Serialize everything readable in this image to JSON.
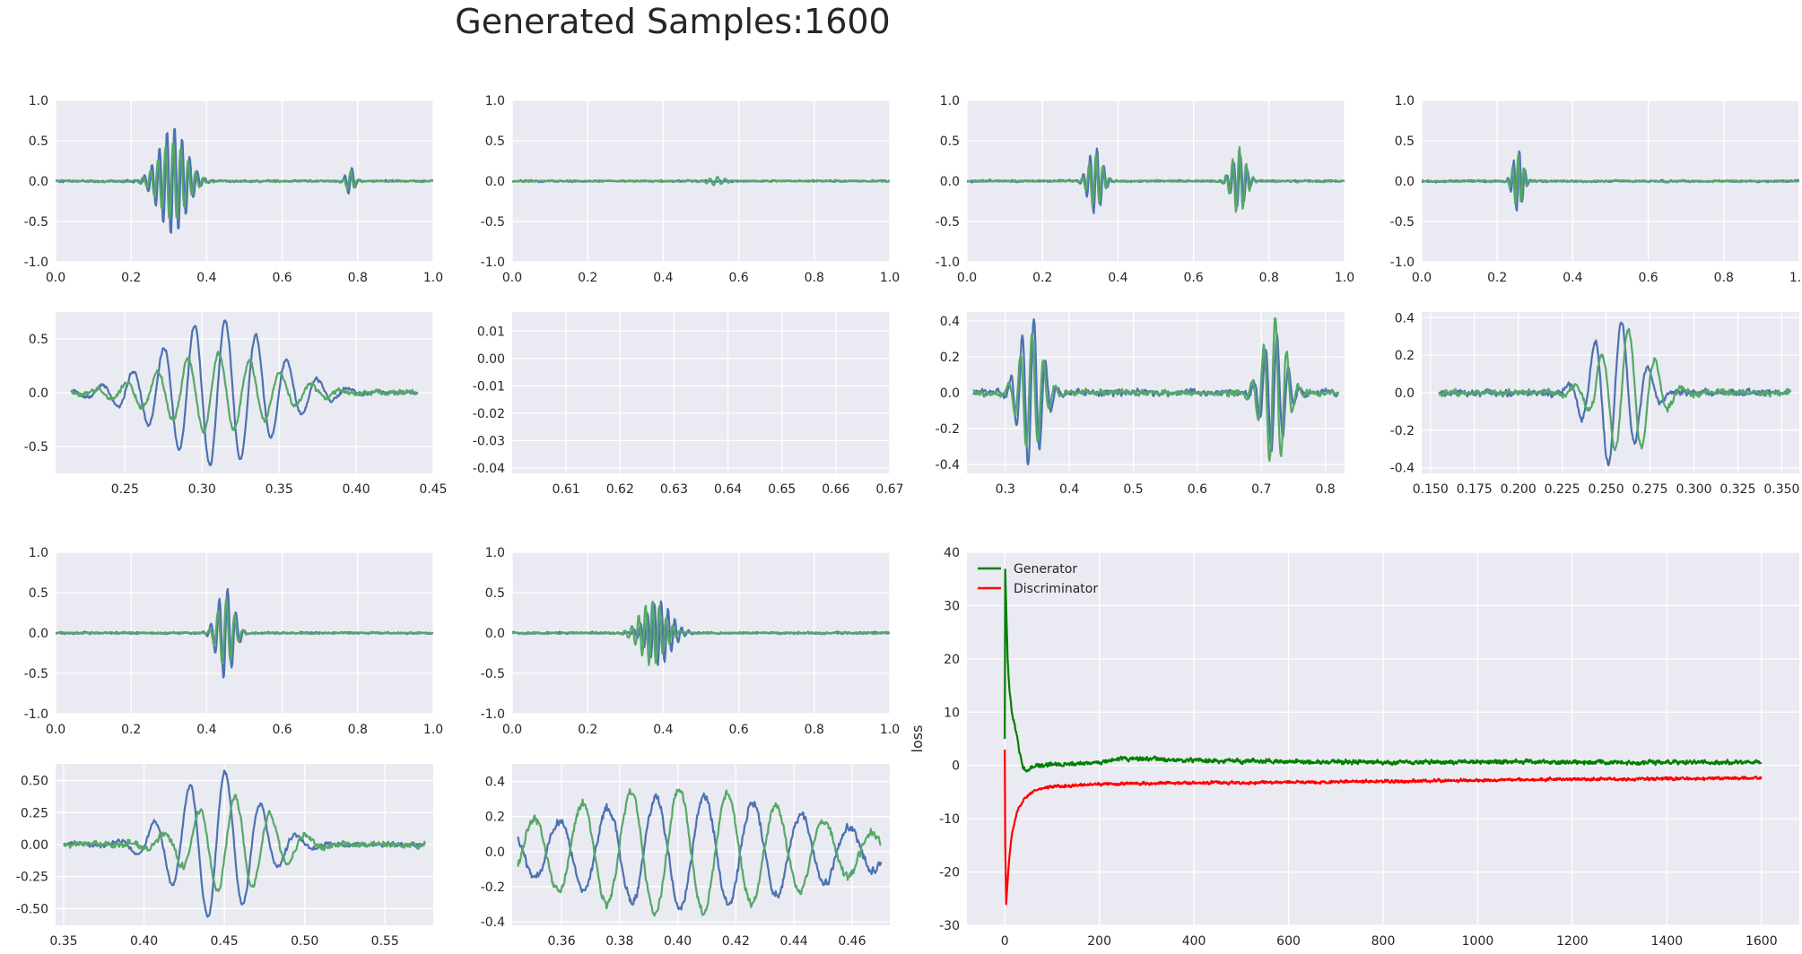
{
  "figure": {
    "title": "Generated Samples:1600",
    "colors": {
      "background": "#eaeaf2",
      "grid": "#ffffff",
      "blue": "#4c72b0",
      "green": "#55a868",
      "generator": "#008000",
      "discriminator": "#ff0000"
    }
  },
  "chart_data": [
    {
      "type": "line",
      "id": "s1-full",
      "xlim": [
        0,
        1
      ],
      "ylim": [
        -1,
        1
      ],
      "xticks": [
        "0.0",
        "0.2",
        "0.4",
        "0.6",
        "0.8",
        "1.0"
      ],
      "yticks": [
        "1.0",
        "0.5",
        "0.0",
        "-0.5",
        "-1.0"
      ],
      "series": [
        {
          "color": "blue",
          "bursts": [
            {
              "c": 0.31,
              "w": 0.05,
              "a": 0.68,
              "f": 50
            },
            {
              "c": 0.78,
              "w": 0.015,
              "a": 0.17,
              "f": 50
            }
          ],
          "noise": 0.02
        },
        {
          "color": "green",
          "bursts": [
            {
              "c": 0.31,
              "w": 0.05,
              "a": 0.5,
              "f": 50,
              "ph": 1.2
            },
            {
              "c": 0.78,
              "w": 0.015,
              "a": 0.13,
              "f": 50,
              "ph": 1.2
            }
          ],
          "noise": 0.02
        }
      ]
    },
    {
      "type": "line",
      "id": "s1-zoom",
      "xlim": [
        0.205,
        0.45
      ],
      "ylim": [
        -0.75,
        0.75
      ],
      "xticks": [
        "0.25",
        "0.30",
        "0.35",
        "0.40",
        "0.45"
      ],
      "yticks": [
        "0.5",
        "0.0",
        "-0.5"
      ],
      "xrange": [
        0.215,
        0.44
      ],
      "series": [
        {
          "color": "blue",
          "bursts": [
            {
              "c": 0.31,
              "w": 0.05,
              "a": 0.68,
              "f": 50
            }
          ],
          "noise": 0.03
        },
        {
          "color": "green",
          "bursts": [
            {
              "c": 0.31,
              "w": 0.05,
              "a": 0.36,
              "f": 50,
              "ph": 1.3
            }
          ],
          "noise": 0.04
        }
      ]
    },
    {
      "type": "line",
      "id": "s2-full",
      "xlim": [
        0,
        1
      ],
      "ylim": [
        -1,
        1
      ],
      "xticks": [
        "0.0",
        "0.2",
        "0.4",
        "0.6",
        "0.8",
        "1.0"
      ],
      "yticks": [
        "1.0",
        "0.5",
        "0.0",
        "-0.5",
        "-1.0"
      ],
      "series": [
        {
          "color": "blue",
          "bursts": [],
          "noise": 0.018
        },
        {
          "color": "green",
          "bursts": [
            {
              "c": 0.54,
              "w": 0.03,
              "a": 0.05,
              "f": 50,
              "ph": 0.5
            }
          ],
          "noise": 0.018
        }
      ]
    },
    {
      "type": "line",
      "id": "s2-zoom",
      "xlim": [
        0.6,
        0.67
      ],
      "ylim": [
        -0.042,
        0.017
      ],
      "xticks": [
        "0.61",
        "0.62",
        "0.63",
        "0.64",
        "0.65",
        "0.66",
        "0.67"
      ],
      "yticks": [
        "0.01",
        "0.00",
        "-0.01",
        "-0.02",
        "-0.03",
        "-0.04"
      ],
      "series": []
    },
    {
      "type": "line",
      "id": "s3-full",
      "xlim": [
        0,
        1
      ],
      "ylim": [
        -1,
        1
      ],
      "xticks": [
        "0.0",
        "0.2",
        "0.4",
        "0.6",
        "0.8",
        "1.0"
      ],
      "yticks": [
        "1.0",
        "0.5",
        "0.0",
        "-0.5",
        "-1.0"
      ],
      "series": [
        {
          "color": "blue",
          "bursts": [
            {
              "c": 0.34,
              "w": 0.025,
              "a": 0.42,
              "f": 55
            },
            {
              "c": 0.72,
              "w": 0.025,
              "a": 0.33,
              "f": 55
            }
          ],
          "noise": 0.02
        },
        {
          "color": "green",
          "bursts": [
            {
              "c": 0.34,
              "w": 0.025,
              "a": 0.33,
              "f": 55,
              "ph": 1.0
            },
            {
              "c": 0.72,
              "w": 0.025,
              "a": 0.42,
              "f": 55,
              "ph": 1.0
            }
          ],
          "noise": 0.02
        }
      ]
    },
    {
      "type": "line",
      "id": "s3-zoom",
      "xlim": [
        0.24,
        0.83
      ],
      "ylim": [
        -0.45,
        0.45
      ],
      "xticks": [
        "0.3",
        "0.4",
        "0.5",
        "0.6",
        "0.7",
        "0.8"
      ],
      "yticks": [
        "0.4",
        "0.2",
        "0.0",
        "-0.2",
        "-0.4"
      ],
      "xrange": [
        0.25,
        0.82
      ],
      "series": [
        {
          "color": "blue",
          "bursts": [
            {
              "c": 0.34,
              "w": 0.025,
              "a": 0.42,
              "f": 55
            },
            {
              "c": 0.72,
              "w": 0.025,
              "a": 0.33,
              "f": 55
            }
          ],
          "noise": 0.03
        },
        {
          "color": "green",
          "bursts": [
            {
              "c": 0.34,
              "w": 0.025,
              "a": 0.33,
              "f": 55,
              "ph": 1.0
            },
            {
              "c": 0.72,
              "w": 0.025,
              "a": 0.42,
              "f": 55,
              "ph": 1.0
            }
          ],
          "noise": 0.03
        }
      ]
    },
    {
      "type": "line",
      "id": "s4-full",
      "xlim": [
        0,
        1
      ],
      "ylim": [
        -1,
        1
      ],
      "xticks": [
        "0.0",
        "0.2",
        "0.4",
        "0.6",
        "0.8",
        "1.0"
      ],
      "yticks": [
        "1.0",
        "0.5",
        "0.0",
        "-0.5",
        "-1.0"
      ],
      "series": [
        {
          "color": "blue",
          "bursts": [
            {
              "c": 0.255,
              "w": 0.018,
              "a": 0.4,
              "f": 65
            }
          ],
          "noise": 0.02
        },
        {
          "color": "green",
          "bursts": [
            {
              "c": 0.255,
              "w": 0.018,
              "a": 0.34,
              "f": 65,
              "ph": 1.3
            }
          ],
          "noise": 0.02
        }
      ]
    },
    {
      "type": "line",
      "id": "s4-zoom",
      "xlim": [
        0.145,
        0.36
      ],
      "ylim": [
        -0.43,
        0.43
      ],
      "xticks": [
        "0.150",
        "0.175",
        "0.200",
        "0.225",
        "0.250",
        "0.275",
        "0.300",
        "0.325",
        "0.350"
      ],
      "yticks": [
        "0.4",
        "0.2",
        "0.0",
        "-0.2",
        "-0.4"
      ],
      "xrange": [
        0.155,
        0.355
      ],
      "series": [
        {
          "color": "blue",
          "bursts": [
            {
              "c": 0.255,
              "w": 0.018,
              "a": 0.4,
              "f": 65
            }
          ],
          "noise": 0.03
        },
        {
          "color": "green",
          "bursts": [
            {
              "c": 0.262,
              "w": 0.02,
              "a": 0.34,
              "f": 65,
              "ph": 1.3
            }
          ],
          "noise": 0.03
        }
      ]
    },
    {
      "type": "line",
      "id": "s5-full",
      "xlim": [
        0,
        1
      ],
      "ylim": [
        -1,
        1
      ],
      "xticks": [
        "0.0",
        "0.2",
        "0.4",
        "0.6",
        "0.8",
        "1.0"
      ],
      "yticks": [
        "1.0",
        "0.5",
        "0.0",
        "-0.5",
        "-1.0"
      ],
      "series": [
        {
          "color": "blue",
          "bursts": [
            {
              "c": 0.45,
              "w": 0.03,
              "a": 0.58,
              "f": 45
            }
          ],
          "noise": 0.02
        },
        {
          "color": "green",
          "bursts": [
            {
              "c": 0.45,
              "w": 0.03,
              "a": 0.42,
              "f": 45,
              "ph": 1.0
            }
          ],
          "noise": 0.02
        }
      ]
    },
    {
      "type": "line",
      "id": "s5-zoom",
      "xlim": [
        0.345,
        0.58
      ],
      "ylim": [
        -0.63,
        0.63
      ],
      "xticks": [
        "0.35",
        "0.40",
        "0.45",
        "0.50",
        "0.55"
      ],
      "yticks": [
        "0.50",
        "0.25",
        "0.00",
        "-0.25",
        "-0.50"
      ],
      "xrange": [
        0.35,
        0.575
      ],
      "series": [
        {
          "color": "blue",
          "bursts": [
            {
              "c": 0.445,
              "w": 0.035,
              "a": 0.58,
              "f": 45
            }
          ],
          "noise": 0.03
        },
        {
          "color": "green",
          "bursts": [
            {
              "c": 0.455,
              "w": 0.035,
              "a": 0.38,
              "f": 45,
              "ph": 1.1
            }
          ],
          "noise": 0.04
        }
      ]
    },
    {
      "type": "line",
      "id": "s6-full",
      "xlim": [
        0,
        1
      ],
      "ylim": [
        -1,
        1
      ],
      "xticks": [
        "0.0",
        "0.2",
        "0.4",
        "0.6",
        "0.8",
        "1.0"
      ],
      "yticks": [
        "1.0",
        "0.5",
        "0.0",
        "-0.5",
        "-1.0"
      ],
      "series": [
        {
          "color": "blue",
          "bursts": [
            {
              "c": 0.39,
              "w": 0.045,
              "a": 0.4,
              "f": 55
            }
          ],
          "noise": 0.02
        },
        {
          "color": "green",
          "bursts": [
            {
              "c": 0.37,
              "w": 0.045,
              "a": 0.4,
              "f": 55,
              "ph": 1.1
            }
          ],
          "noise": 0.02
        }
      ]
    },
    {
      "type": "line",
      "id": "s6-zoom",
      "xlim": [
        0.343,
        0.473
      ],
      "ylim": [
        -0.42,
        0.5
      ],
      "xticks": [
        "0.36",
        "0.38",
        "0.40",
        "0.42",
        "0.44",
        "0.46"
      ],
      "yticks": [
        "0.4",
        "0.2",
        "0.0",
        "-0.2",
        "-0.4"
      ],
      "xrange": [
        0.345,
        0.47
      ],
      "series": [
        {
          "color": "blue",
          "bursts": [
            {
              "c": 0.405,
              "w": 0.06,
              "a": 0.32,
              "f": 60
            }
          ],
          "noise": 0.04
        },
        {
          "color": "green",
          "bursts": [
            {
              "c": 0.4,
              "w": 0.06,
              "a": 0.36,
              "f": 60,
              "ph": 1.4
            }
          ],
          "noise": 0.04
        }
      ]
    },
    {
      "type": "line",
      "id": "loss",
      "xlim": [
        -80,
        1680
      ],
      "ylim": [
        -30,
        40
      ],
      "xticks": [
        "0",
        "200",
        "400",
        "600",
        "800",
        "1000",
        "1200",
        "1400",
        "1600"
      ],
      "yticks": [
        "40",
        "30",
        "20",
        "10",
        "0",
        "-10",
        "-20",
        "-30"
      ],
      "ylabel": "loss",
      "legend": "top-left",
      "series": [
        {
          "name": "Generator",
          "color": "generator",
          "anchors": [
            [
              0,
              5
            ],
            [
              1,
              37
            ],
            [
              3,
              30
            ],
            [
              6,
              20
            ],
            [
              10,
              14
            ],
            [
              15,
              10
            ],
            [
              20,
              8
            ],
            [
              25,
              6
            ],
            [
              30,
              3
            ],
            [
              35,
              1
            ],
            [
              40,
              -0.5
            ],
            [
              45,
              -1
            ],
            [
              60,
              -0.2
            ],
            [
              100,
              0.2
            ],
            [
              200,
              0.5
            ],
            [
              250,
              1.3
            ],
            [
              300,
              1.3
            ],
            [
              350,
              1
            ],
            [
              500,
              0.8
            ],
            [
              800,
              0.6
            ],
            [
              1100,
              0.7
            ],
            [
              1300,
              0.6
            ],
            [
              1600,
              0.6
            ]
          ],
          "noise": 0.5
        },
        {
          "name": "Discriminator",
          "color": "discriminator",
          "anchors": [
            [
              0,
              3
            ],
            [
              1,
              -15
            ],
            [
              3,
              -26
            ],
            [
              6,
              -22
            ],
            [
              10,
              -17
            ],
            [
              15,
              -13
            ],
            [
              20,
              -11
            ],
            [
              25,
              -9
            ],
            [
              30,
              -8
            ],
            [
              40,
              -6.5
            ],
            [
              50,
              -5.5
            ],
            [
              70,
              -4.5
            ],
            [
              100,
              -4
            ],
            [
              200,
              -3.5
            ],
            [
              500,
              -3.2
            ],
            [
              800,
              -3
            ],
            [
              1000,
              -2.8
            ],
            [
              1200,
              -2.6
            ],
            [
              1600,
              -2.4
            ]
          ],
          "noise": 0.35
        }
      ]
    }
  ]
}
